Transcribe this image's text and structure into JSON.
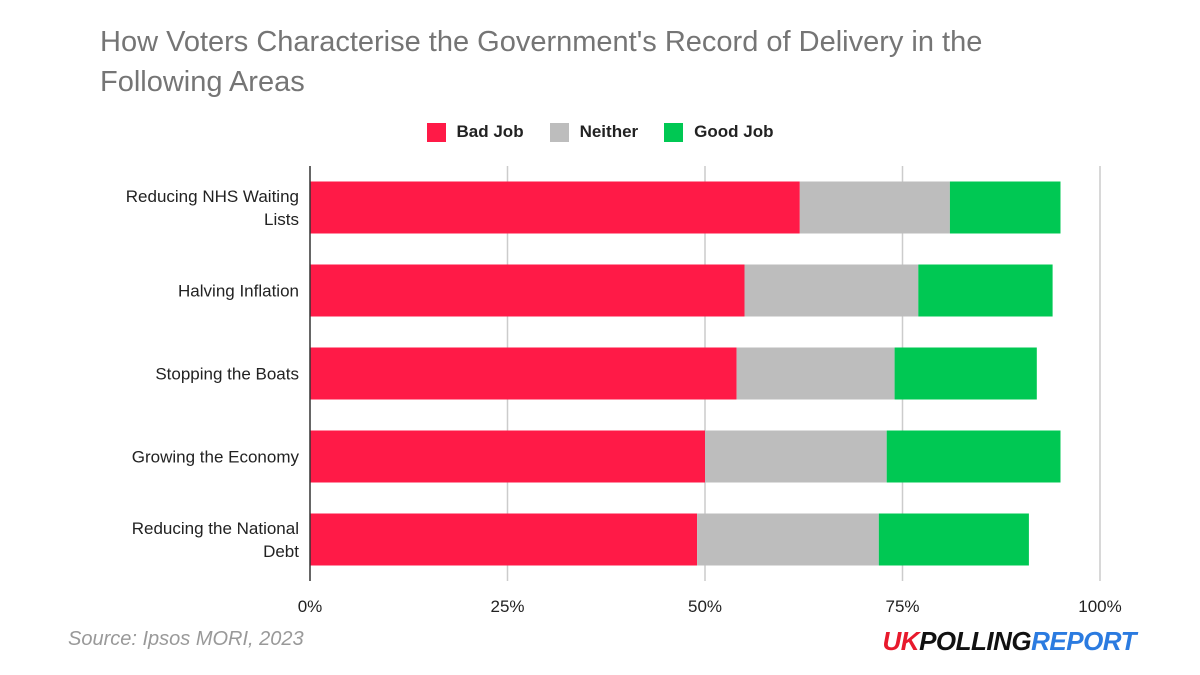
{
  "chart_data": {
    "type": "bar",
    "orientation": "horizontal",
    "stacked": true,
    "title": "How Voters Characterise the Government's Record of Delivery in the Following Areas",
    "categories": [
      "Reducing NHS Waiting Lists",
      "Halving Inflation",
      "Stopping the Boats",
      "Growing the Economy",
      "Reducing the National Debt"
    ],
    "series": [
      {
        "name": "Bad Job",
        "color": "#ff1a47",
        "values": [
          62,
          55,
          54,
          50,
          49
        ]
      },
      {
        "name": "Neither",
        "color": "#bdbdbd",
        "values": [
          19,
          22,
          20,
          23,
          23
        ]
      },
      {
        "name": "Good Job",
        "color": "#00c853",
        "values": [
          14,
          17,
          18,
          22,
          19
        ]
      }
    ],
    "xlim": [
      0,
      100
    ],
    "xticks": [
      "0%",
      "25%",
      "50%",
      "75%",
      "100%"
    ],
    "grid": true,
    "legend_position": "top-center"
  },
  "footer": {
    "source": "Source: Ipsos MORI, 2023",
    "logo_uk": "UK",
    "logo_polling": "POLLING",
    "logo_report": "REPORT"
  }
}
